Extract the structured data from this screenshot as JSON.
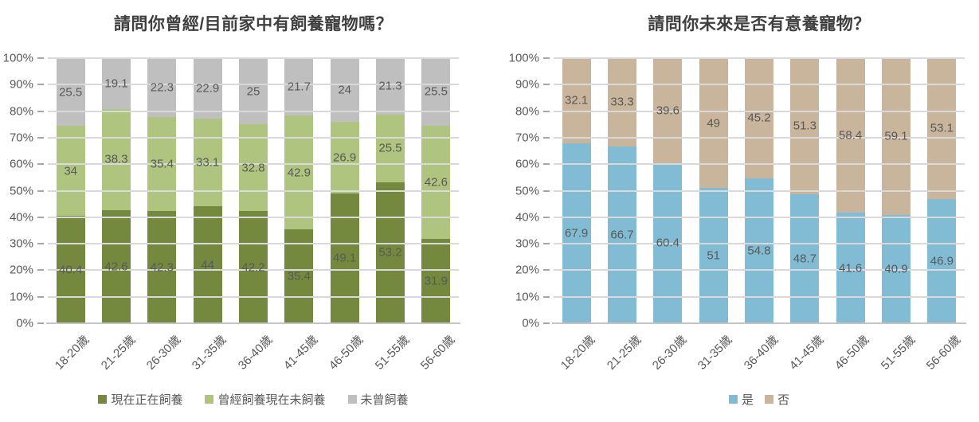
{
  "chart_data": [
    {
      "type": "bar",
      "stacking": "100%",
      "title": "請問你曾經/目前家中有飼養寵物嗎？",
      "categories": [
        "18-20歲",
        "21-25歲",
        "26-30歲",
        "31-35歲",
        "36-40歲",
        "41-45歲",
        "46-50歲",
        "51-55歲",
        "56-60歲"
      ],
      "series": [
        {
          "name": "現在正在飼養",
          "color": "#74893E",
          "values": [
            40.4,
            42.6,
            42.3,
            44,
            42.2,
            35.4,
            49.1,
            53.2,
            31.9
          ]
        },
        {
          "name": "曾經飼養現在未飼養",
          "color": "#AFC47E",
          "values": [
            34,
            38.3,
            35.4,
            33.1,
            32.8,
            42.9,
            26.9,
            25.5,
            42.6
          ]
        },
        {
          "name": "未曾飼養",
          "color": "#BFBFBF",
          "values": [
            25.5,
            19.1,
            22.3,
            22.9,
            25,
            21.7,
            24,
            21.3,
            25.5
          ]
        }
      ],
      "ylim": [
        0,
        100
      ],
      "ytick_labels": [
        "0%",
        "10%",
        "20%",
        "30%",
        "40%",
        "50%",
        "60%",
        "70%",
        "80%",
        "90%",
        "100%"
      ],
      "grid": true,
      "legend_position": "bottom"
    },
    {
      "type": "bar",
      "stacking": "100%",
      "title": "請問你未來是否有意養寵物？",
      "categories": [
        "18-20歲",
        "21-25歲",
        "26-30歲",
        "31-35歲",
        "36-40歲",
        "41-45歲",
        "46-50歲",
        "51-55歲",
        "56-60歲"
      ],
      "series": [
        {
          "name": "是",
          "color": "#81BCD4",
          "values": [
            67.9,
            66.7,
            60.4,
            51,
            54.8,
            48.7,
            41.6,
            40.9,
            46.9
          ]
        },
        {
          "name": "否",
          "color": "#C8B59B",
          "values": [
            32.1,
            33.3,
            39.6,
            49,
            45.2,
            51.3,
            58.4,
            59.1,
            53.1
          ]
        }
      ],
      "ylim": [
        0,
        100
      ],
      "ytick_labels": [
        "0%",
        "10%",
        "20%",
        "30%",
        "40%",
        "50%",
        "60%",
        "70%",
        "80%",
        "90%",
        "100%"
      ],
      "grid": true,
      "legend_position": "bottom"
    }
  ],
  "styles": {
    "background": "#FFFFFF",
    "title_color": "#3F3F3F",
    "label_color": "#595959",
    "gridline_color": "#D9D9D9",
    "axis_color": "#C4C4C4",
    "tick_color": "#A6A6A6"
  }
}
